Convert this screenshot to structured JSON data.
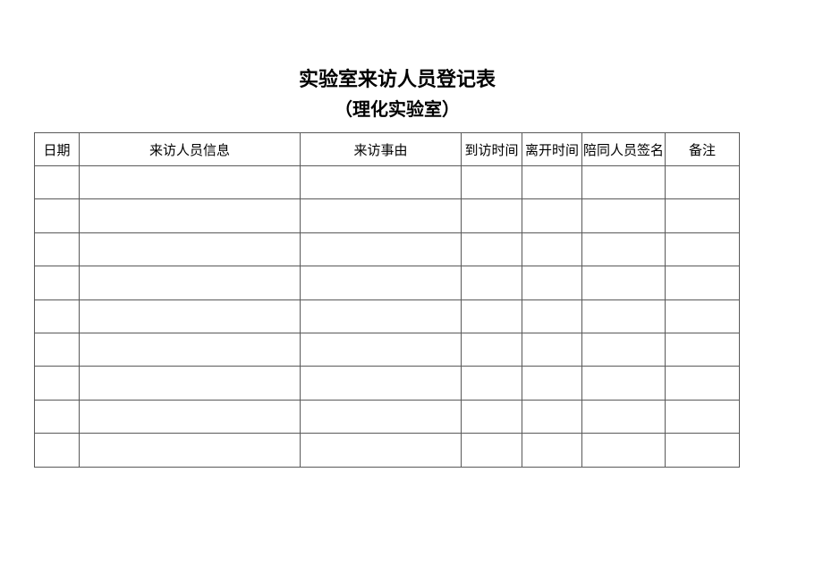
{
  "document": {
    "title": "实验室来访人员登记表",
    "subtitle": "（理化实验室）"
  },
  "table": {
    "headers": [
      "日期",
      "来访人员信息",
      "来访事由",
      "到访时间",
      "离开时间",
      "陪同人员签名",
      "备注"
    ],
    "empty_rows": 9
  },
  "colors": {
    "text": "#000000",
    "border": "#595959",
    "background": "#ffffff"
  }
}
